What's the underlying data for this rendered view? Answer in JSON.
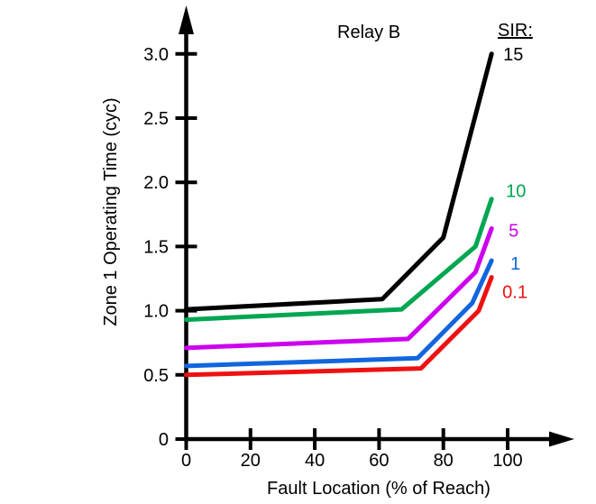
{
  "chart": {
    "annotation": "Relay B",
    "legend_title": "SIR:",
    "xlabel": "Fault Location (% of Reach)",
    "ylabel": "Zone 1 Operating Time (cyc)"
  },
  "chart_data": {
    "type": "line",
    "title": "Relay B",
    "xlabel": "Fault Location (% of Reach)",
    "ylabel": "Zone 1 Operating Time (cyc)",
    "xlim": [
      0,
      120
    ],
    "ylim": [
      0,
      3.35
    ],
    "grid": false,
    "axis_color": "#000000",
    "axis_arrows": true,
    "x_ticks": [
      0,
      20,
      40,
      60,
      80,
      100
    ],
    "x_tick_labels": [
      "0",
      "20",
      "40",
      "60",
      "80",
      "100"
    ],
    "y_ticks": [
      0,
      0.5,
      1.0,
      1.5,
      2.0,
      2.5,
      3.0
    ],
    "y_tick_labels": [
      "0",
      "0.5",
      "1.0",
      "1.5",
      "2.0",
      "2.5",
      "3.0"
    ],
    "legend_title": "SIR:",
    "legend_position": "right of curve ends",
    "series": [
      {
        "name": "15",
        "color": "#000000",
        "points": [
          [
            0,
            1.01
          ],
          [
            61,
            1.09
          ],
          [
            80,
            1.57
          ],
          [
            95,
            3.0
          ]
        ]
      },
      {
        "name": "10",
        "color": "#00A651",
        "points": [
          [
            0,
            0.93
          ],
          [
            67,
            1.01
          ],
          [
            90,
            1.5
          ],
          [
            95,
            1.87
          ]
        ]
      },
      {
        "name": "5",
        "color": "#CC00EE",
        "points": [
          [
            0,
            0.71
          ],
          [
            69,
            0.78
          ],
          [
            90,
            1.3
          ],
          [
            95,
            1.64
          ]
        ]
      },
      {
        "name": "1",
        "color": "#1166DD",
        "points": [
          [
            0,
            0.57
          ],
          [
            72,
            0.63
          ],
          [
            89,
            1.06
          ],
          [
            95,
            1.39
          ]
        ]
      },
      {
        "name": "0.1",
        "color": "#EE1111",
        "points": [
          [
            0,
            0.5
          ],
          [
            73,
            0.55
          ],
          [
            91,
            1.0
          ],
          [
            95,
            1.26
          ]
        ]
      }
    ]
  }
}
